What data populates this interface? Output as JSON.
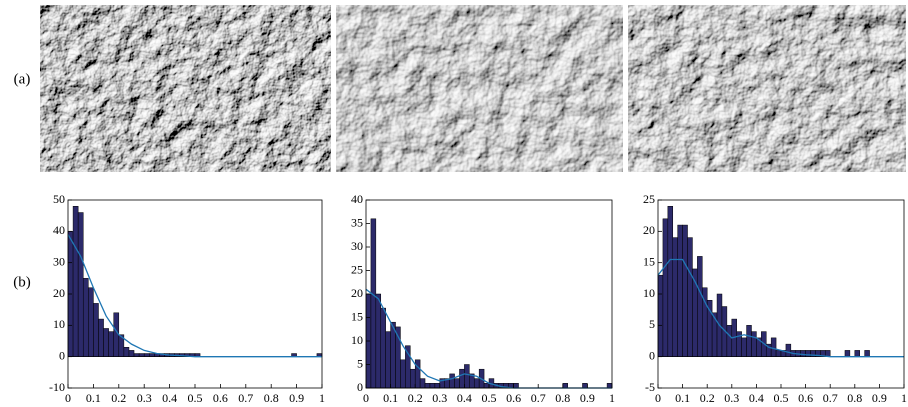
{
  "panel_labels": [
    "(a)",
    "(b)"
  ],
  "chart_data": [
    {
      "type": "histogram",
      "color": "#2c2a6a",
      "edge_color": "#000000",
      "bins": [
        0,
        0.02,
        0.04,
        0.06,
        0.08,
        0.1,
        0.12,
        0.14,
        0.16,
        0.18,
        0.2,
        0.22,
        0.24,
        0.26,
        0.28,
        0.3,
        0.32,
        0.34,
        0.36,
        0.38,
        0.4,
        0.42,
        0.44,
        0.46,
        0.48,
        0.5,
        0.52,
        0.54,
        0.56,
        0.58,
        0.6,
        0.62,
        0.64,
        0.66,
        0.68,
        0.7,
        0.72,
        0.74,
        0.76,
        0.78,
        0.8,
        0.82,
        0.84,
        0.86,
        0.88,
        0.9,
        0.92,
        0.94,
        0.96,
        0.98,
        1
      ],
      "values": [
        40,
        48,
        46,
        25,
        22,
        17,
        12,
        9,
        8,
        14,
        7,
        3,
        2,
        1,
        1,
        1,
        1,
        1,
        1,
        1,
        1,
        1,
        1,
        1,
        1,
        1,
        0,
        0,
        0,
        0,
        0,
        0,
        0,
        0,
        0,
        0,
        0,
        0,
        0,
        0,
        0,
        0,
        0,
        0,
        1,
        0,
        0,
        0,
        0,
        1
      ],
      "curve": {
        "color": "#1f77b4",
        "x": [
          0,
          0.05,
          0.1,
          0.15,
          0.2,
          0.25,
          0.3,
          0.35,
          0.4,
          0.45,
          0.5,
          0.55,
          0.6,
          0.65,
          0.7,
          0.75,
          0.8,
          0.85,
          0.9,
          0.95,
          1
        ],
        "values": [
          39,
          32,
          22,
          13,
          7,
          4,
          2,
          1,
          0.5,
          0.3,
          0,
          0,
          0,
          0,
          0,
          0,
          0,
          0,
          0,
          0,
          0
        ]
      },
      "xlim": [
        0,
        1
      ],
      "xticks": [
        0,
        0.1,
        0.2,
        0.3,
        0.4,
        0.5,
        0.6,
        0.7,
        0.8,
        0.9,
        1
      ],
      "ylim": [
        -10,
        50
      ],
      "yticks": [
        -10,
        0,
        10,
        20,
        30,
        40,
        50
      ]
    },
    {
      "type": "histogram",
      "color": "#2c2a6a",
      "edge_color": "#000000",
      "bins": [
        0,
        0.02,
        0.04,
        0.06,
        0.08,
        0.1,
        0.12,
        0.14,
        0.16,
        0.18,
        0.2,
        0.22,
        0.24,
        0.26,
        0.28,
        0.3,
        0.32,
        0.34,
        0.36,
        0.38,
        0.4,
        0.42,
        0.44,
        0.46,
        0.48,
        0.5,
        0.52,
        0.54,
        0.56,
        0.58,
        0.6,
        0.62,
        0.64,
        0.66,
        0.68,
        0.7,
        0.72,
        0.74,
        0.76,
        0.78,
        0.8,
        0.82,
        0.84,
        0.86,
        0.88,
        0.9,
        0.92,
        0.94,
        0.96,
        0.98,
        1
      ],
      "values": [
        20,
        36,
        20,
        17,
        12,
        14,
        13,
        6,
        9,
        4,
        6,
        2,
        1,
        1,
        1,
        2,
        2,
        3,
        2,
        4,
        5,
        3,
        2,
        4,
        1,
        2,
        1,
        1,
        1,
        1,
        1,
        0,
        0,
        0,
        0,
        0,
        0,
        0,
        0,
        0,
        1,
        0,
        0,
        0,
        1,
        0,
        0,
        0,
        0,
        1
      ],
      "curve": {
        "color": "#1f77b4",
        "x": [
          0,
          0.05,
          0.1,
          0.15,
          0.2,
          0.25,
          0.3,
          0.35,
          0.4,
          0.45,
          0.5,
          0.55,
          0.6,
          0.65,
          0.7,
          0.75,
          0.8,
          0.85,
          0.9,
          0.95,
          1
        ],
        "values": [
          21,
          19,
          14,
          9,
          5,
          2.5,
          1.5,
          2,
          3,
          2.5,
          1,
          0.3,
          0,
          0,
          0,
          0,
          0,
          0,
          0,
          0,
          0
        ]
      },
      "xlim": [
        0,
        1
      ],
      "xticks": [
        0,
        0.1,
        0.2,
        0.3,
        0.4,
        0.5,
        0.6,
        0.7,
        0.8,
        0.9,
        1
      ],
      "ylim": [
        0,
        40
      ],
      "yticks": [
        0,
        5,
        10,
        15,
        20,
        25,
        30,
        35,
        40
      ]
    },
    {
      "type": "histogram",
      "color": "#2c2a6a",
      "edge_color": "#000000",
      "bins": [
        0,
        0.02,
        0.04,
        0.06,
        0.08,
        0.1,
        0.12,
        0.14,
        0.16,
        0.18,
        0.2,
        0.22,
        0.24,
        0.26,
        0.28,
        0.3,
        0.32,
        0.34,
        0.36,
        0.38,
        0.4,
        0.42,
        0.44,
        0.46,
        0.48,
        0.5,
        0.52,
        0.54,
        0.56,
        0.58,
        0.6,
        0.62,
        0.64,
        0.66,
        0.68,
        0.7,
        0.72,
        0.74,
        0.76,
        0.78,
        0.8,
        0.82,
        0.84,
        0.86,
        0.88,
        0.9,
        0.92,
        0.94,
        0.96,
        0.98,
        1
      ],
      "values": [
        13,
        22,
        24,
        19,
        21,
        21,
        19,
        14,
        16,
        11,
        9,
        7,
        10,
        8,
        5,
        6,
        4,
        3,
        5,
        4,
        3,
        4,
        2,
        3,
        1,
        1,
        2,
        1,
        1,
        1,
        1,
        1,
        1,
        1,
        1,
        0,
        0,
        0,
        1,
        0,
        1,
        0,
        1,
        0,
        0,
        0,
        0,
        0,
        0,
        0
      ],
      "curve": {
        "color": "#1f77b4",
        "x": [
          0,
          0.05,
          0.1,
          0.15,
          0.2,
          0.25,
          0.3,
          0.35,
          0.4,
          0.45,
          0.5,
          0.55,
          0.6,
          0.65,
          0.7,
          0.75,
          0.8,
          0.85,
          0.9,
          0.95,
          1
        ],
        "values": [
          13,
          15.5,
          15.5,
          12,
          8,
          5,
          3,
          3.5,
          3,
          1.5,
          1,
          0.5,
          0.3,
          0.2,
          0,
          0,
          0,
          0,
          0,
          0,
          0
        ]
      },
      "xlim": [
        0,
        1
      ],
      "xticks": [
        0,
        0.1,
        0.2,
        0.3,
        0.4,
        0.5,
        0.6,
        0.7,
        0.8,
        0.9,
        1
      ],
      "ylim": [
        -5,
        25
      ],
      "yticks": [
        -5,
        0,
        5,
        10,
        15,
        20,
        25
      ]
    }
  ]
}
